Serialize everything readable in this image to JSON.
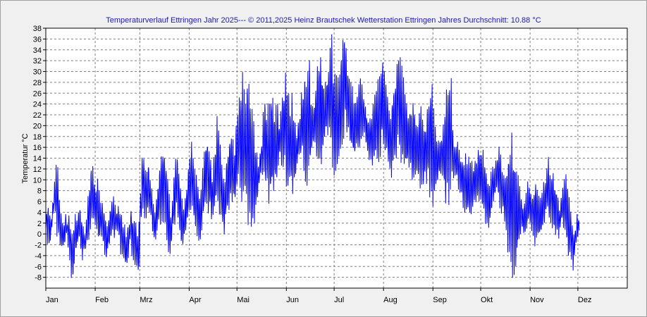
{
  "chart_data": {
    "type": "line",
    "title": "Temperaturverlauf Ettringen Jahr 2025--- © 2011,2025 Heinz Brautschek Wetterstation Ettringen Jahres Durchschnitt: 10.88 °C",
    "ylabel": "Temperatur °C",
    "xlabel": "",
    "ylim": [
      -10,
      38
    ],
    "yticks": [
      -8,
      -6,
      -4,
      -2,
      0,
      2,
      4,
      6,
      8,
      10,
      12,
      14,
      16,
      18,
      20,
      22,
      24,
      26,
      28,
      30,
      32,
      34,
      36,
      38
    ],
    "xlim": [
      0,
      365
    ],
    "grid": true,
    "line_color": "#0000ff",
    "months": [
      {
        "label": "Jan",
        "day": 0
      },
      {
        "label": "Feb",
        "day": 31
      },
      {
        "label": "Mrz",
        "day": 59
      },
      {
        "label": "Apr",
        "day": 90
      },
      {
        "label": "Mai",
        "day": 120
      },
      {
        "label": "Jun",
        "day": 151
      },
      {
        "label": "Jul",
        "day": 181
      },
      {
        "label": "Aug",
        "day": 212
      },
      {
        "label": "Sep",
        "day": 243
      },
      {
        "label": "Okt",
        "day": 273
      },
      {
        "label": "Nov",
        "day": 304
      },
      {
        "label": "Dez",
        "day": 334
      }
    ],
    "series": [
      {
        "daily_min": [
          1,
          -1,
          -2,
          0,
          3,
          5,
          4,
          1,
          0,
          -2,
          -3,
          -2,
          -1,
          0,
          -2,
          -4,
          -8,
          -9,
          -3,
          -2,
          -1,
          0,
          -3,
          -4,
          -3,
          -2,
          -1,
          0,
          1,
          2,
          3,
          1,
          2,
          -1,
          0,
          0,
          -2,
          -3,
          -4,
          -2,
          -1,
          0,
          0,
          0,
          1,
          0,
          -1,
          -3,
          -4,
          -5,
          -6,
          -5,
          -2,
          0,
          -3,
          -4,
          -5,
          -6,
          -7,
          2,
          5,
          6,
          4,
          3,
          5,
          4,
          3,
          0,
          -1,
          0,
          1,
          2,
          3,
          4,
          4,
          3,
          0,
          -2,
          -3,
          0,
          2,
          3,
          4,
          2,
          0,
          -2,
          -2,
          0,
          2,
          4,
          5,
          6,
          4,
          2,
          1,
          0,
          -1,
          0,
          3,
          4,
          6,
          7,
          5,
          5,
          3,
          4,
          6,
          8,
          6,
          5,
          3,
          2,
          1,
          4,
          5,
          6,
          7,
          6,
          6,
          8,
          10,
          12,
          10,
          9,
          8,
          7,
          6,
          5,
          4,
          3,
          2,
          4,
          6,
          8,
          10,
          12,
          11,
          10,
          10,
          9,
          8,
          8,
          8,
          9,
          10,
          12,
          13,
          14,
          14,
          13,
          12,
          11,
          10,
          9,
          8,
          9,
          10,
          12,
          14,
          15,
          15,
          16,
          14,
          12,
          11,
          12,
          14,
          16,
          18,
          18,
          16,
          14,
          14,
          13,
          15,
          17,
          19,
          20,
          17,
          15,
          14,
          13,
          14,
          14,
          16,
          18,
          18,
          20,
          21,
          20,
          18,
          16,
          15,
          15,
          15,
          16,
          16,
          17,
          18,
          19,
          18,
          16,
          15,
          14,
          14,
          14,
          13,
          14,
          14,
          15,
          16,
          18,
          17,
          16,
          14,
          13,
          12,
          12,
          13,
          14,
          16,
          17,
          16,
          15,
          14,
          13,
          13,
          14,
          13,
          12,
          11,
          12,
          11,
          10,
          11,
          10,
          9,
          10,
          11,
          11,
          11,
          9,
          8,
          7,
          8,
          9,
          10,
          11,
          12,
          10,
          8,
          7,
          7,
          8,
          9,
          10,
          11,
          11,
          10,
          9,
          8,
          7,
          6,
          5,
          4,
          4,
          3,
          4,
          5,
          6,
          7,
          8,
          7,
          6,
          5,
          4,
          3,
          3,
          2,
          4,
          5,
          6,
          7,
          8,
          7,
          6,
          5,
          4,
          3,
          2,
          -1,
          -2,
          -3,
          -5,
          -6,
          -4,
          -2,
          0,
          1,
          1,
          -1,
          0,
          2,
          3,
          2,
          1,
          0,
          -1,
          -2,
          -1,
          0,
          1,
          2,
          3,
          4,
          4,
          3,
          3,
          2,
          1,
          0,
          1,
          0,
          2,
          3,
          2,
          0,
          -1,
          -3,
          -4,
          -5,
          -6,
          -3,
          -1,
          0
        ],
        "daily_max": [
          4,
          5,
          4,
          3,
          6,
          9,
          12,
          11,
          6,
          4,
          2,
          2,
          3,
          2,
          3,
          1,
          0,
          2,
          3,
          2,
          4,
          5,
          3,
          1,
          0,
          3,
          6,
          8,
          12,
          11,
          9,
          8,
          9,
          8,
          6,
          5,
          4,
          3,
          1,
          3,
          5,
          6,
          6,
          5,
          4,
          5,
          4,
          3,
          2,
          1,
          0,
          1,
          2,
          4,
          3,
          2,
          1,
          0,
          1,
          8,
          14,
          15,
          12,
          11,
          13,
          10,
          8,
          6,
          4,
          6,
          9,
          12,
          14,
          16,
          15,
          12,
          9,
          6,
          4,
          6,
          10,
          13,
          15,
          12,
          9,
          6,
          4,
          6,
          9,
          13,
          15,
          17,
          14,
          12,
          10,
          8,
          6,
          7,
          11,
          14,
          17,
          18,
          14,
          15,
          11,
          13,
          16,
          20,
          18,
          15,
          12,
          10,
          9,
          13,
          15,
          17,
          19,
          16,
          16,
          19,
          22,
          25,
          26,
          27,
          24,
          23,
          28,
          29,
          25,
          22,
          20,
          16,
          14,
          12,
          15,
          17,
          21,
          24,
          23,
          22,
          24,
          26,
          23,
          21,
          22,
          23,
          20,
          22,
          25,
          27,
          30,
          27,
          25,
          23,
          24,
          22,
          20,
          18,
          20,
          22,
          25,
          26,
          28,
          29,
          30,
          30,
          24,
          23,
          24,
          26,
          29,
          32,
          31,
          30,
          28,
          27,
          29,
          31,
          33,
          34,
          30,
          29,
          28,
          27,
          30,
          32,
          35,
          38,
          36,
          30,
          28,
          27,
          26,
          25,
          25,
          26,
          27,
          28,
          27,
          26,
          24,
          22,
          21,
          22,
          22,
          24,
          26,
          27,
          28,
          29,
          30,
          31,
          30,
          28,
          25,
          23,
          22,
          24,
          27,
          29,
          33,
          35,
          31,
          29,
          28,
          26,
          24,
          22,
          24,
          23,
          23,
          22,
          20,
          21,
          21,
          22,
          21,
          20,
          20,
          22,
          24,
          26,
          25,
          23,
          20,
          18,
          17,
          17,
          18,
          20,
          22,
          24,
          26,
          28,
          27,
          20,
          17,
          16,
          16,
          15,
          14,
          13,
          13,
          14,
          14,
          13,
          14,
          13,
          12,
          13,
          14,
          15,
          16,
          15,
          14,
          13,
          11,
          10,
          9,
          11,
          13,
          12,
          13,
          14,
          16,
          14,
          12,
          11,
          10,
          12,
          14,
          15,
          16,
          15,
          13,
          11,
          10,
          8,
          7,
          5,
          6,
          7,
          9,
          8,
          8,
          7,
          8,
          9,
          8,
          7,
          6,
          7,
          9,
          10,
          11,
          13,
          12,
          11,
          10,
          9,
          8,
          6,
          5,
          6,
          8,
          9,
          10,
          8,
          6,
          4,
          2,
          0,
          1,
          3,
          3
        ]
      }
    ]
  }
}
